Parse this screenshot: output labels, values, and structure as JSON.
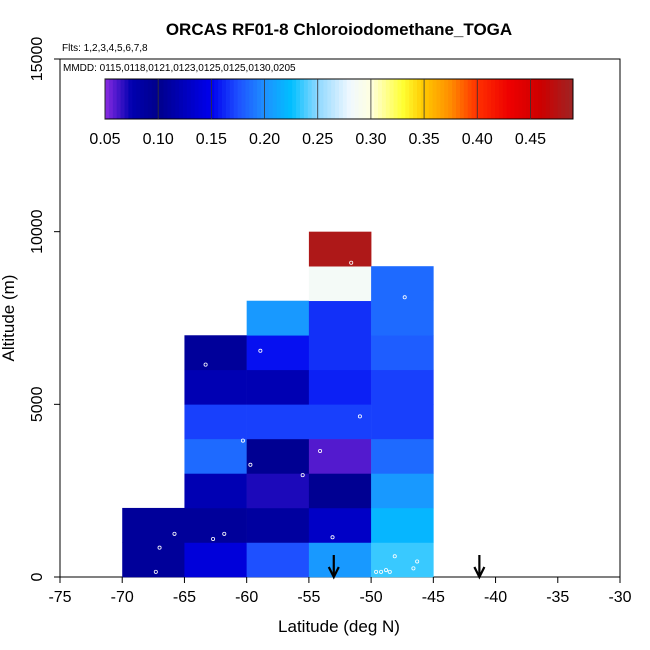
{
  "chart_data": {
    "type": "heatmap",
    "title": "ORCAS RF01-8 Chloroiodomethane_TOGA",
    "flights_note": "Flts: 1,2,3,4,5,6,7,8",
    "dates_note": "MMDD: 0115,0118,0121,0123,0125,0125,0130,0205",
    "xlabel": "Latitude (deg N)",
    "ylabel": "Altitude (m)",
    "xlim": [
      -75,
      -30
    ],
    "ylim": [
      0,
      15000
    ],
    "x_ticks": [
      -75,
      -70,
      -65,
      -60,
      -55,
      -50,
      -45,
      -40,
      -35,
      -30
    ],
    "x_tick_labels": [
      "-75",
      "-70",
      "-65",
      "-60",
      "-55",
      "-50",
      "-45",
      "-40",
      "-35",
      "-30"
    ],
    "y_ticks": [
      0,
      5000,
      10000,
      15000
    ],
    "y_tick_labels": [
      "0",
      "5000",
      "10000",
      "15000"
    ],
    "colorbar": {
      "range": [
        0.05,
        0.49
      ],
      "ticks": [
        0.05,
        0.1,
        0.15,
        0.2,
        0.25,
        0.3,
        0.35,
        0.4,
        0.45
      ],
      "tick_labels": [
        "0.05",
        "0.10",
        "0.15",
        "0.20",
        "0.25",
        "0.30",
        "0.35",
        "0.40",
        "0.45"
      ],
      "stops": [
        {
          "v": 0.05,
          "c": "#8a2be2"
        },
        {
          "v": 0.075,
          "c": "#0000b0"
        },
        {
          "v": 0.1,
          "c": "#00008b"
        },
        {
          "v": 0.15,
          "c": "#0000ee"
        },
        {
          "v": 0.175,
          "c": "#1e50ff"
        },
        {
          "v": 0.2,
          "c": "#1e90ff"
        },
        {
          "v": 0.225,
          "c": "#00bfff"
        },
        {
          "v": 0.25,
          "c": "#8fd8ff"
        },
        {
          "v": 0.28,
          "c": "#f0f8ff"
        },
        {
          "v": 0.3,
          "c": "#ffffe0"
        },
        {
          "v": 0.33,
          "c": "#ffff33"
        },
        {
          "v": 0.35,
          "c": "#ffc800"
        },
        {
          "v": 0.375,
          "c": "#ff8c00"
        },
        {
          "v": 0.4,
          "c": "#ff3000"
        },
        {
          "v": 0.43,
          "c": "#ee0000"
        },
        {
          "v": 0.46,
          "c": "#cd0000"
        },
        {
          "v": 0.49,
          "c": "#9e2424"
        }
      ]
    },
    "cells": [
      {
        "lat": [
          -70,
          -65
        ],
        "alt": [
          0,
          1000
        ],
        "value": 0.09
      },
      {
        "lat": [
          -70,
          -65
        ],
        "alt": [
          1000,
          2000
        ],
        "value": 0.09
      },
      {
        "lat": [
          -65,
          -60
        ],
        "alt": [
          0,
          1000
        ],
        "value": 0.14
      },
      {
        "lat": [
          -65,
          -60
        ],
        "alt": [
          1000,
          2000
        ],
        "value": 0.09
      },
      {
        "lat": [
          -65,
          -60
        ],
        "alt": [
          2000,
          3000
        ],
        "value": 0.12
      },
      {
        "lat": [
          -65,
          -60
        ],
        "alt": [
          3000,
          4000
        ],
        "value": 0.185
      },
      {
        "lat": [
          -65,
          -60
        ],
        "alt": [
          4000,
          5000
        ],
        "value": 0.17
      },
      {
        "lat": [
          -65,
          -60
        ],
        "alt": [
          5000,
          6000
        ],
        "value": 0.12
      },
      {
        "lat": [
          -65,
          -60
        ],
        "alt": [
          6000,
          7000
        ],
        "value": 0.09
      },
      {
        "lat": [
          -60,
          -55
        ],
        "alt": [
          0,
          1000
        ],
        "value": 0.175
      },
      {
        "lat": [
          -60,
          -55
        ],
        "alt": [
          1000,
          2000
        ],
        "value": 0.11
      },
      {
        "lat": [
          -60,
          -55
        ],
        "alt": [
          2000,
          3000
        ],
        "value": 0.07
      },
      {
        "lat": [
          -60,
          -55
        ],
        "alt": [
          3000,
          4000
        ],
        "value": 0.095
      },
      {
        "lat": [
          -60,
          -55
        ],
        "alt": [
          4000,
          5000
        ],
        "value": 0.17
      },
      {
        "lat": [
          -60,
          -55
        ],
        "alt": [
          5000,
          6000
        ],
        "value": 0.12
      },
      {
        "lat": [
          -60,
          -55
        ],
        "alt": [
          6000,
          7000
        ],
        "value": 0.155
      },
      {
        "lat": [
          -60,
          -55
        ],
        "alt": [
          7000,
          8000
        ],
        "value": 0.205
      },
      {
        "lat": [
          -55,
          -50
        ],
        "alt": [
          0,
          1000
        ],
        "value": 0.205
      },
      {
        "lat": [
          -55,
          -50
        ],
        "alt": [
          1000,
          2000
        ],
        "value": 0.13
      },
      {
        "lat": [
          -55,
          -50
        ],
        "alt": [
          2000,
          3000
        ],
        "value": 0.095
      },
      {
        "lat": [
          -55,
          -50
        ],
        "alt": [
          3000,
          4000
        ],
        "value": 0.06
      },
      {
        "lat": [
          -55,
          -50
        ],
        "alt": [
          4000,
          5000
        ],
        "value": 0.17
      },
      {
        "lat": [
          -55,
          -50
        ],
        "alt": [
          5000,
          6000
        ],
        "value": 0.16
      },
      {
        "lat": [
          -55,
          -50
        ],
        "alt": [
          6000,
          7000
        ],
        "value": 0.165
      },
      {
        "lat": [
          -55,
          -50
        ],
        "alt": [
          7000,
          8000
        ],
        "value": 0.165
      },
      {
        "lat": [
          -55,
          -50
        ],
        "alt": [
          8000,
          9000
        ],
        "value": 0.285
      },
      {
        "lat": [
          -55,
          -50
        ],
        "alt": [
          9000,
          10000
        ],
        "value": 0.48
      },
      {
        "lat": [
          -50,
          -45
        ],
        "alt": [
          0,
          1000
        ],
        "value": 0.235
      },
      {
        "lat": [
          -50,
          -45
        ],
        "alt": [
          1000,
          2000
        ],
        "value": 0.22
      },
      {
        "lat": [
          -50,
          -45
        ],
        "alt": [
          2000,
          3000
        ],
        "value": 0.205
      },
      {
        "lat": [
          -50,
          -45
        ],
        "alt": [
          3000,
          4000
        ],
        "value": 0.185
      },
      {
        "lat": [
          -50,
          -45
        ],
        "alt": [
          4000,
          5000
        ],
        "value": 0.17
      },
      {
        "lat": [
          -50,
          -45
        ],
        "alt": [
          5000,
          6000
        ],
        "value": 0.17
      },
      {
        "lat": [
          -50,
          -45
        ],
        "alt": [
          6000,
          7000
        ],
        "value": 0.18
      },
      {
        "lat": [
          -50,
          -45
        ],
        "alt": [
          7000,
          8000
        ],
        "value": 0.185
      },
      {
        "lat": [
          -50,
          -45
        ],
        "alt": [
          8000,
          9000
        ],
        "value": 0.185
      }
    ],
    "samples": [
      {
        "lat": -67.3,
        "alt": 150
      },
      {
        "lat": -67.0,
        "alt": 850
      },
      {
        "lat": -65.8,
        "alt": 1250
      },
      {
        "lat": -62.7,
        "alt": 1100
      },
      {
        "lat": -61.8,
        "alt": 1250
      },
      {
        "lat": -63.3,
        "alt": 6150
      },
      {
        "lat": -60.3,
        "alt": 3950
      },
      {
        "lat": -59.7,
        "alt": 3250
      },
      {
        "lat": -58.9,
        "alt": 6550
      },
      {
        "lat": -55.5,
        "alt": 2950
      },
      {
        "lat": -54.1,
        "alt": 3650
      },
      {
        "lat": -53.1,
        "alt": 1150
      },
      {
        "lat": -51.6,
        "alt": 9100
      },
      {
        "lat": -50.9,
        "alt": 4650
      },
      {
        "lat": -49.6,
        "alt": 150
      },
      {
        "lat": -49.2,
        "alt": 150
      },
      {
        "lat": -48.8,
        "alt": 200
      },
      {
        "lat": -48.5,
        "alt": 150
      },
      {
        "lat": -48.1,
        "alt": 600
      },
      {
        "lat": -46.6,
        "alt": 250
      },
      {
        "lat": -46.3,
        "alt": 450
      },
      {
        "lat": -47.3,
        "alt": 8100
      }
    ],
    "markers": [
      {
        "type": "arrow-down",
        "lat": -53.0
      },
      {
        "type": "arrow-down",
        "lat": -41.3
      }
    ]
  }
}
